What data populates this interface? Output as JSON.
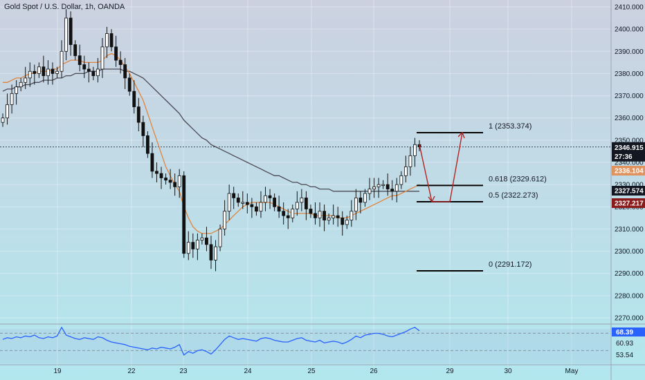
{
  "header": {
    "title": "Gold Spot / U.S. Dollar, 1h, OANDA"
  },
  "colors": {
    "bg_top": "#ccd1e0",
    "bg_bottom": "#b2e7ee",
    "candle": "#111111",
    "ma_fast": "#e0843d",
    "ma_slow": "#4a4a55",
    "rsi": "#2962ff",
    "arrow": "#b22222",
    "badge_price": "#131722",
    "badge_orange": "#e0935e",
    "badge_dark": "#131722",
    "badge_red": "#8b1a1a"
  },
  "chart_data": {
    "type": "candlestick",
    "y_ticks": [
      2410,
      2400,
      2390,
      2380,
      2370,
      2360,
      2350,
      2340,
      2330,
      2320,
      2310,
      2300,
      2290,
      2280,
      2270
    ],
    "y_tick_labels": [
      "2410.000",
      "2400.000",
      "2390.000",
      "2380.000",
      "2370.000",
      "2360.000",
      "2350.000",
      "2340.000",
      "2330.000",
      "2320.000",
      "2310.000",
      "2300.000",
      "2290.000",
      "2280.000",
      "2270.000"
    ],
    "ylim": [
      2267,
      2412
    ],
    "x_ticks": [
      "19",
      "22",
      "23",
      "24",
      "25",
      "26",
      "29",
      "30",
      "May"
    ],
    "current_price": "2346.915",
    "countdown": "27:36",
    "badges": [
      {
        "value": "2336.104",
        "price": 2336.104,
        "style": "orange"
      },
      {
        "value": "2327.574",
        "price": 2327.574,
        "style": "dark"
      },
      {
        "value": "2327.217",
        "price": 2327.217,
        "style": "red"
      }
    ],
    "fib_levels": [
      {
        "ratio": "1",
        "price": 2353.374,
        "label": "1 (2353.374)"
      },
      {
        "ratio": "0.618",
        "price": 2329.612,
        "label": "0.618 (2329.612)"
      },
      {
        "ratio": "0.5",
        "price": 2322.273,
        "label": "0.5 (2322.273)"
      },
      {
        "ratio": "0",
        "price": 2291.172,
        "label": "0 (2291.172)"
      }
    ],
    "series": {
      "close": [
        2360,
        2366,
        2371,
        2374,
        2376,
        2378,
        2381,
        2380,
        2383,
        2379,
        2382,
        2380,
        2381,
        2390,
        2405,
        2393,
        2388,
        2384,
        2382,
        2381,
        2379,
        2382,
        2392,
        2398,
        2392,
        2386,
        2384,
        2378,
        2372,
        2365,
        2358,
        2352,
        2344,
        2336,
        2335,
        2333,
        2332,
        2331,
        2329,
        2334,
        2299,
        2304,
        2301,
        2305,
        2306,
        2303,
        2296,
        2302,
        2310,
        2318,
        2326,
        2324,
        2322,
        2322,
        2321,
        2320,
        2318,
        2322,
        2325,
        2324,
        2320,
        2318,
        2316,
        2315,
        2319,
        2322,
        2324,
        2319,
        2317,
        2315,
        2318,
        2314,
        2315,
        2316,
        2315,
        2312,
        2314,
        2318,
        2324,
        2322,
        2326,
        2328,
        2329,
        2330,
        2330,
        2328,
        2327,
        2330,
        2334,
        2338,
        2343,
        2348,
        2347
      ],
      "ma_fast": [
        2376,
        2376,
        2377,
        2378,
        2378,
        2379,
        2380,
        2380,
        2381,
        2381,
        2381,
        2382,
        2382,
        2384,
        2385,
        2386,
        2386,
        2386,
        2385,
        2385,
        2385,
        2385,
        2386,
        2388,
        2389,
        2388,
        2386,
        2383,
        2380,
        2376,
        2372,
        2368,
        2362,
        2356,
        2350,
        2344,
        2338,
        2334,
        2330,
        2327,
        2320,
        2315,
        2311,
        2309,
        2308,
        2308,
        2308,
        2309,
        2310,
        2312,
        2314,
        2316,
        2318,
        2320,
        2321,
        2322,
        2322,
        2322,
        2322,
        2322,
        2321,
        2320,
        2319,
        2318,
        2317,
        2317,
        2317,
        2317,
        2317,
        2316,
        2316,
        2316,
        2316,
        2316,
        2315,
        2315,
        2315,
        2316,
        2317,
        2318,
        2319,
        2320,
        2321,
        2322,
        2323,
        2324,
        2325,
        2325,
        2326,
        2327,
        2328,
        2329,
        2330
      ],
      "ma_slow": [
        2372,
        2373,
        2373,
        2374,
        2374,
        2375,
        2375,
        2376,
        2376,
        2377,
        2377,
        2377,
        2378,
        2378,
        2379,
        2379,
        2380,
        2380,
        2380,
        2381,
        2381,
        2381,
        2382,
        2382,
        2382,
        2382,
        2382,
        2381,
        2381,
        2380,
        2379,
        2378,
        2376,
        2374,
        2372,
        2370,
        2368,
        2366,
        2364,
        2362,
        2359,
        2357,
        2355,
        2353,
        2351,
        2350,
        2348,
        2347,
        2346,
        2345,
        2344,
        2343,
        2342,
        2341,
        2340,
        2339,
        2338,
        2337,
        2336,
        2335,
        2334,
        2334,
        2333,
        2332,
        2331,
        2331,
        2330,
        2330,
        2329,
        2329,
        2328,
        2328,
        2328,
        2327,
        2327,
        2327,
        2327,
        2327,
        2327,
        2327,
        2327,
        2327,
        2327,
        2327,
        2327,
        2327,
        2327,
        2327,
        2327,
        2327,
        2327,
        2327,
        2327
      ],
      "rsi": [
        58,
        60,
        59,
        61,
        60,
        62,
        61,
        63,
        60,
        59,
        61,
        60,
        62,
        72,
        63,
        61,
        59,
        58,
        60,
        59,
        58,
        61,
        60,
        57,
        55,
        54,
        53,
        52,
        50,
        49,
        48,
        47,
        46,
        48,
        47,
        49,
        48,
        47,
        49,
        52,
        40,
        44,
        42,
        45,
        46,
        44,
        41,
        46,
        52,
        58,
        62,
        60,
        58,
        59,
        58,
        57,
        56,
        59,
        60,
        59,
        57,
        56,
        55,
        55,
        57,
        59,
        60,
        57,
        56,
        55,
        57,
        54,
        55,
        56,
        55,
        53,
        55,
        58,
        62,
        60,
        63,
        64,
        65,
        65,
        64,
        62,
        61,
        63,
        65,
        67,
        70,
        72,
        68
      ]
    },
    "rsi_panel": {
      "value": "68.39",
      "levels": [
        "60.93",
        "53.54"
      ]
    }
  }
}
